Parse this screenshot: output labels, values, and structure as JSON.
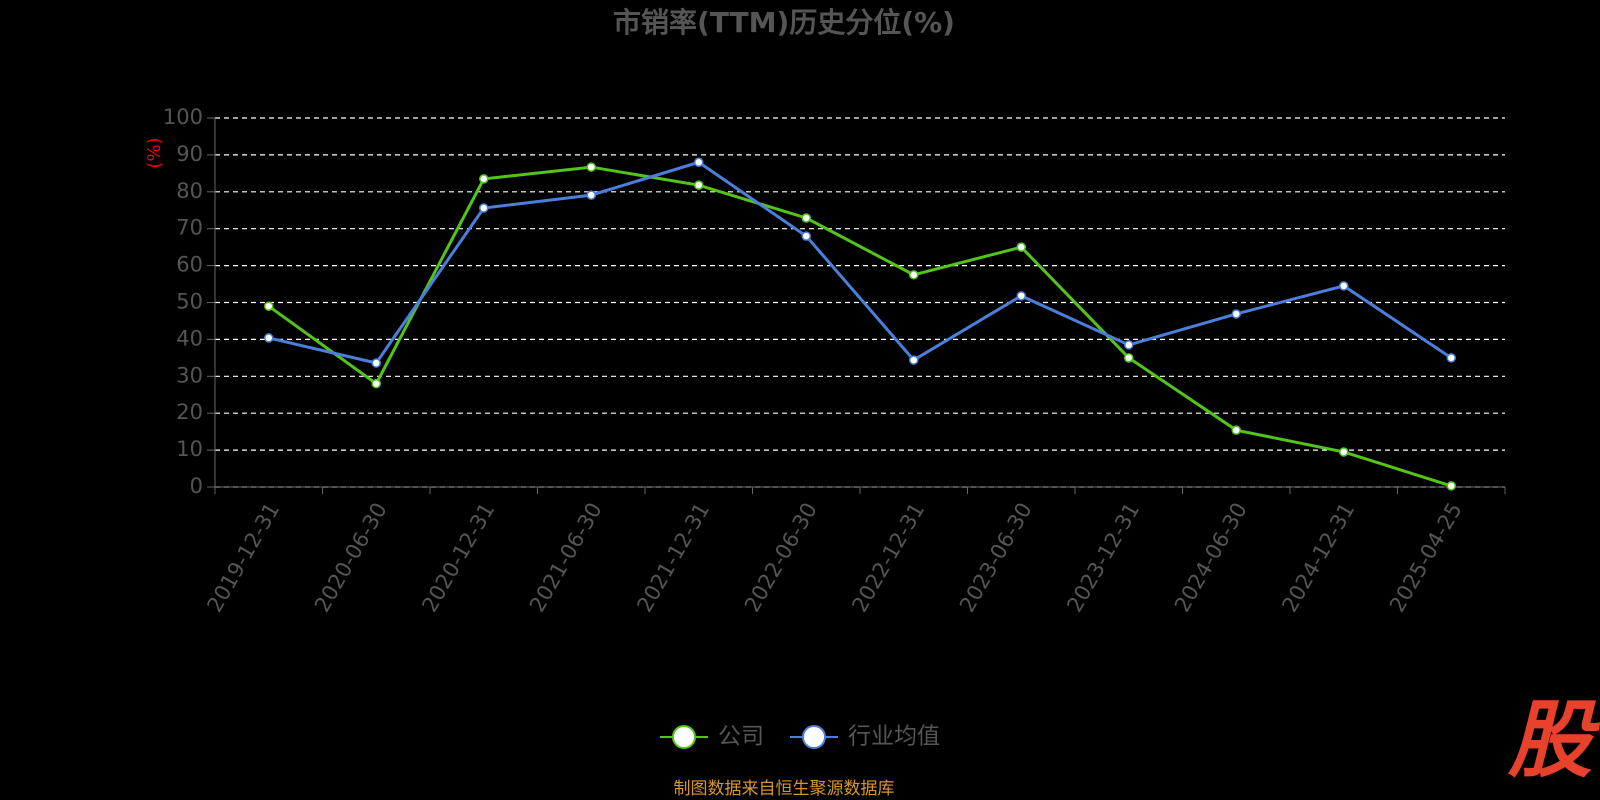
{
  "chart_data": {
    "type": "line",
    "title": "市销率(TTM)历史分位(%)",
    "y_label": "(%)",
    "categories": [
      "2019-12-31",
      "2020-06-30",
      "2020-12-31",
      "2021-06-30",
      "2021-12-31",
      "2022-06-30",
      "2022-12-31",
      "2023-06-30",
      "2023-12-31",
      "2024-06-30",
      "2024-12-31",
      "2025-04-25"
    ],
    "series": [
      {
        "name": "公司",
        "color": "#52c41a",
        "values": [
          49,
          28,
          83.5,
          86.7,
          81.8,
          72.9,
          57.5,
          65,
          35,
          15.4,
          9.5,
          0.3
        ]
      },
      {
        "name": "行业均值",
        "color": "#4a7fdb",
        "values": [
          40.4,
          33.6,
          75.6,
          79.1,
          88,
          68,
          34.4,
          51.8,
          38.5,
          46.9,
          54.5,
          35
        ]
      }
    ],
    "ylim": [
      0,
      100
    ],
    "yticks": [
      0,
      10,
      20,
      30,
      40,
      50,
      60,
      70,
      80,
      90,
      100
    ],
    "grid": true,
    "legend": "bottom",
    "source": "制图数据来自恒生聚源数据库",
    "watermark": "股"
  }
}
